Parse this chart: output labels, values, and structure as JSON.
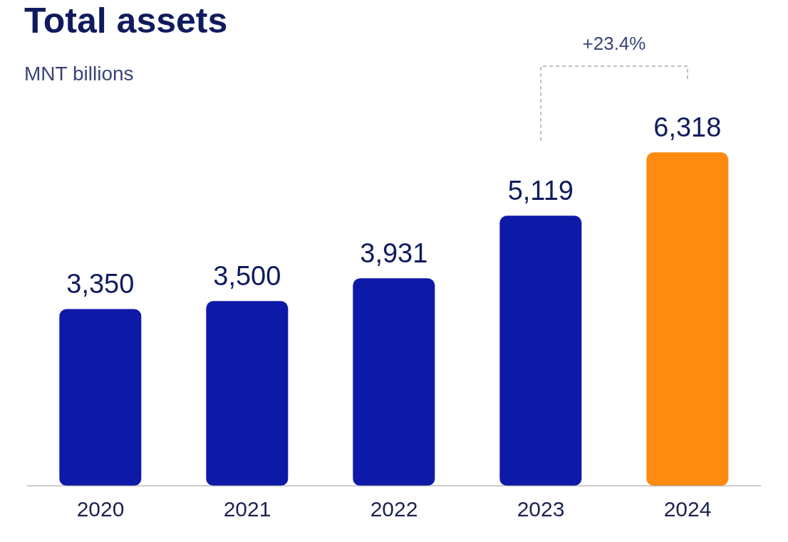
{
  "chart_data": {
    "type": "bar",
    "title": "Total assets",
    "subtitle": "MNT billions",
    "categories": [
      "2020",
      "2021",
      "2022",
      "2023",
      "2024"
    ],
    "values": [
      3350,
      3500,
      3931,
      5119,
      6318
    ],
    "colors": [
      "#0d1aa8",
      "#0d1aa8",
      "#0d1aa8",
      "#0d1aa8",
      "#ff8a10"
    ],
    "value_labels": [
      "3,350",
      "3,500",
      "3,931",
      "5,119",
      "6,318"
    ],
    "annotations": [
      "+23.4%"
    ]
  }
}
